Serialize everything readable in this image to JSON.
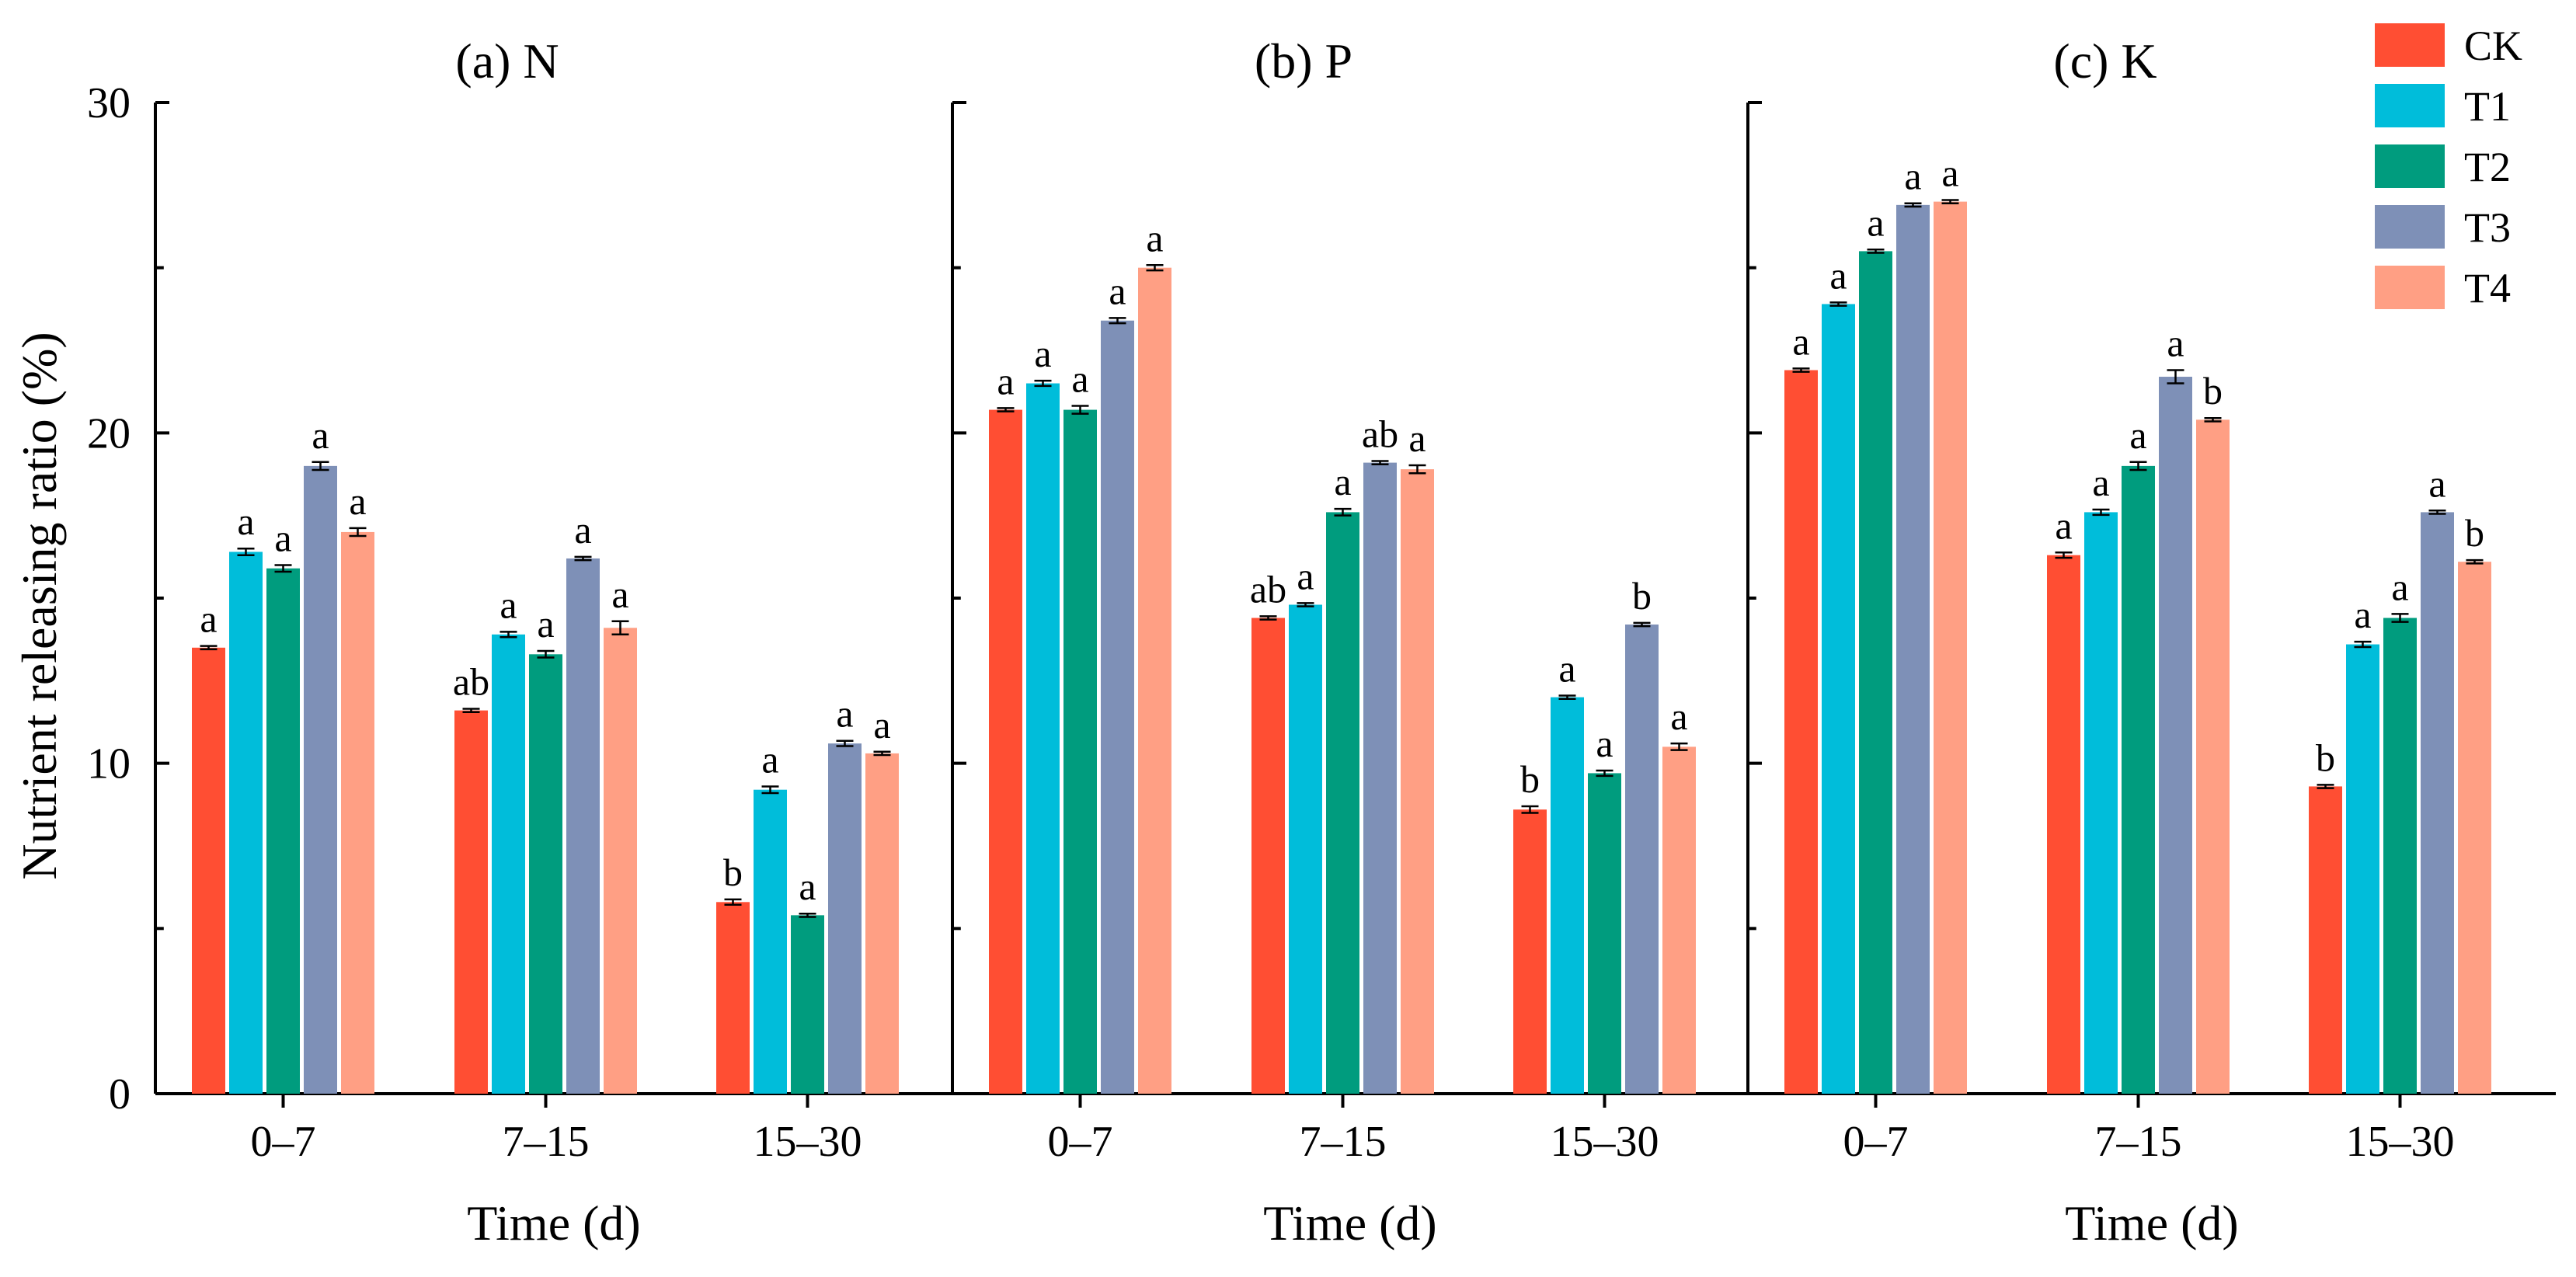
{
  "chart_data": {
    "type": "bar",
    "ylabel": "Nutrient releasing ratio (%)",
    "ylim": [
      0,
      30
    ],
    "yticks": [
      "0",
      "10",
      "20",
      "30"
    ],
    "legend": {
      "position": "top-right",
      "entries": [
        {
          "name": "CK",
          "color": "#FF4E33"
        },
        {
          "name": "T1",
          "color": "#00BDDA"
        },
        {
          "name": "T2",
          "color": "#009C7E"
        },
        {
          "name": "T3",
          "color": "#7E90B7"
        },
        {
          "name": "T4",
          "color": "#FF9F84"
        }
      ]
    },
    "panels": [
      {
        "title": "(a) N",
        "xlabel": "Time (d)",
        "categories": [
          "0–7",
          "7–15",
          "15–30"
        ],
        "series": [
          {
            "name": "CK",
            "values": [
              13.5,
              11.6,
              5.8
            ],
            "errors": [
              0.05,
              0.05,
              0.08
            ],
            "sig": [
              "a",
              "ab",
              "b"
            ]
          },
          {
            "name": "T1",
            "values": [
              16.4,
              13.9,
              9.2
            ],
            "errors": [
              0.1,
              0.08,
              0.1
            ],
            "sig": [
              "a",
              "a",
              "a"
            ]
          },
          {
            "name": "T2",
            "values": [
              15.9,
              13.3,
              5.4
            ],
            "errors": [
              0.1,
              0.1,
              0.05
            ],
            "sig": [
              "a",
              "a",
              "a"
            ]
          },
          {
            "name": "T3",
            "values": [
              19.0,
              16.2,
              10.6
            ],
            "errors": [
              0.12,
              0.05,
              0.08
            ],
            "sig": [
              "a",
              "a",
              "a"
            ]
          },
          {
            "name": "T4",
            "values": [
              17.0,
              14.1,
              10.3
            ],
            "errors": [
              0.12,
              0.2,
              0.05
            ],
            "sig": [
              "a",
              "a",
              "a"
            ]
          }
        ]
      },
      {
        "title": "(b) P",
        "xlabel": "Time (d)",
        "categories": [
          "0–7",
          "7–15",
          "15–30"
        ],
        "series": [
          {
            "name": "CK",
            "values": [
              20.7,
              14.4,
              8.6
            ],
            "errors": [
              0.05,
              0.05,
              0.1
            ],
            "sig": [
              "a",
              "ab",
              "b"
            ]
          },
          {
            "name": "T1",
            "values": [
              21.5,
              14.8,
              12.0
            ],
            "errors": [
              0.08,
              0.05,
              0.05
            ],
            "sig": [
              "a",
              "a",
              "a"
            ]
          },
          {
            "name": "T2",
            "values": [
              20.7,
              17.6,
              9.7
            ],
            "errors": [
              0.12,
              0.1,
              0.08
            ],
            "sig": [
              "a",
              "a",
              "a"
            ]
          },
          {
            "name": "T3",
            "values": [
              23.4,
              19.1,
              14.2
            ],
            "errors": [
              0.08,
              0.05,
              0.05
            ],
            "sig": [
              "a",
              "ab",
              "b"
            ]
          },
          {
            "name": "T4",
            "values": [
              25.0,
              18.9,
              10.5
            ],
            "errors": [
              0.08,
              0.12,
              0.1
            ],
            "sig": [
              "a",
              "a",
              "a"
            ]
          }
        ]
      },
      {
        "title": "(c) K",
        "xlabel": "Time (d)",
        "categories": [
          "0–7",
          "7–15",
          "15–30"
        ],
        "series": [
          {
            "name": "CK",
            "values": [
              21.9,
              16.3,
              9.3
            ],
            "errors": [
              0.05,
              0.08,
              0.05
            ],
            "sig": [
              "a",
              "a",
              "b"
            ]
          },
          {
            "name": "T1",
            "values": [
              23.9,
              17.6,
              13.6
            ],
            "errors": [
              0.05,
              0.08,
              0.08
            ],
            "sig": [
              "a",
              "a",
              "a"
            ]
          },
          {
            "name": "T2",
            "values": [
              25.5,
              19.0,
              14.4
            ],
            "errors": [
              0.05,
              0.12,
              0.12
            ],
            "sig": [
              "a",
              "a",
              "a"
            ]
          },
          {
            "name": "T3",
            "values": [
              26.9,
              21.7,
              17.6
            ],
            "errors": [
              0.05,
              0.2,
              0.05
            ],
            "sig": [
              "a",
              "a",
              "a"
            ]
          },
          {
            "name": "T4",
            "values": [
              27.0,
              20.4,
              16.1
            ],
            "errors": [
              0.05,
              0.05,
              0.05
            ],
            "sig": [
              "a",
              "b",
              "b"
            ]
          }
        ]
      }
    ]
  }
}
